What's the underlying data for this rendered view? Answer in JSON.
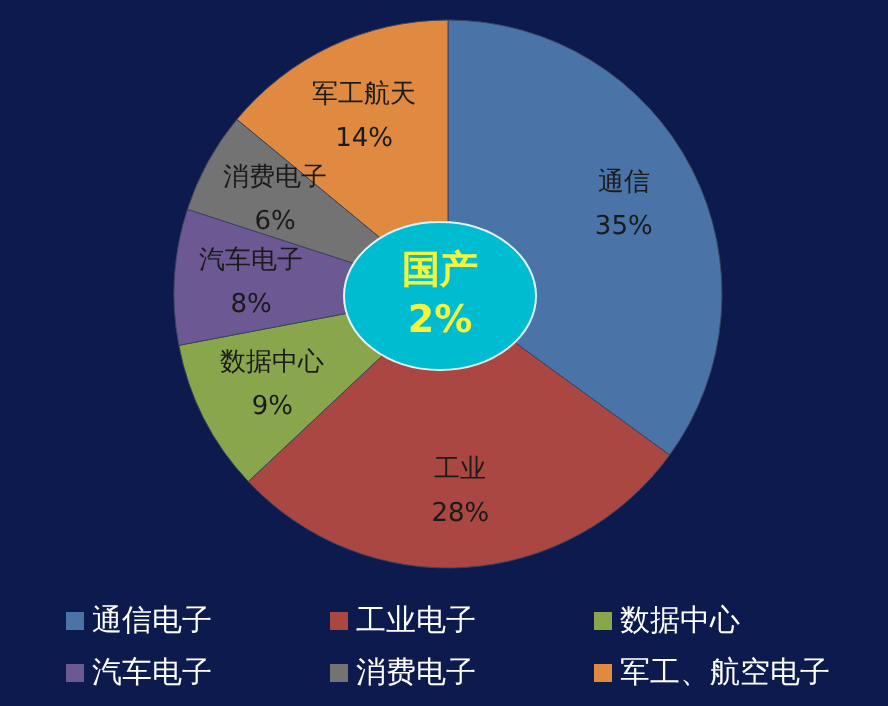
{
  "chart_data": {
    "type": "pie",
    "categories": [
      "通信电子",
      "工业电子",
      "数据中心",
      "汽车电子",
      "消费电子",
      "军工、航空电子"
    ],
    "values": [
      35,
      28,
      9,
      8,
      6,
      14
    ],
    "colors": [
      "#4a74a8",
      "#ab4743",
      "#8aa64d",
      "#6c5893",
      "#737373",
      "#df8a40"
    ],
    "value_labels": [
      "通信\n35%",
      "工业\n28%",
      "数据中心\n9%",
      "汽车电子\n8%",
      "消费电子\n6%",
      "军工航天\n14%"
    ],
    "annotations": [
      "国产\n2%"
    ],
    "legend": "bottom"
  }
}
